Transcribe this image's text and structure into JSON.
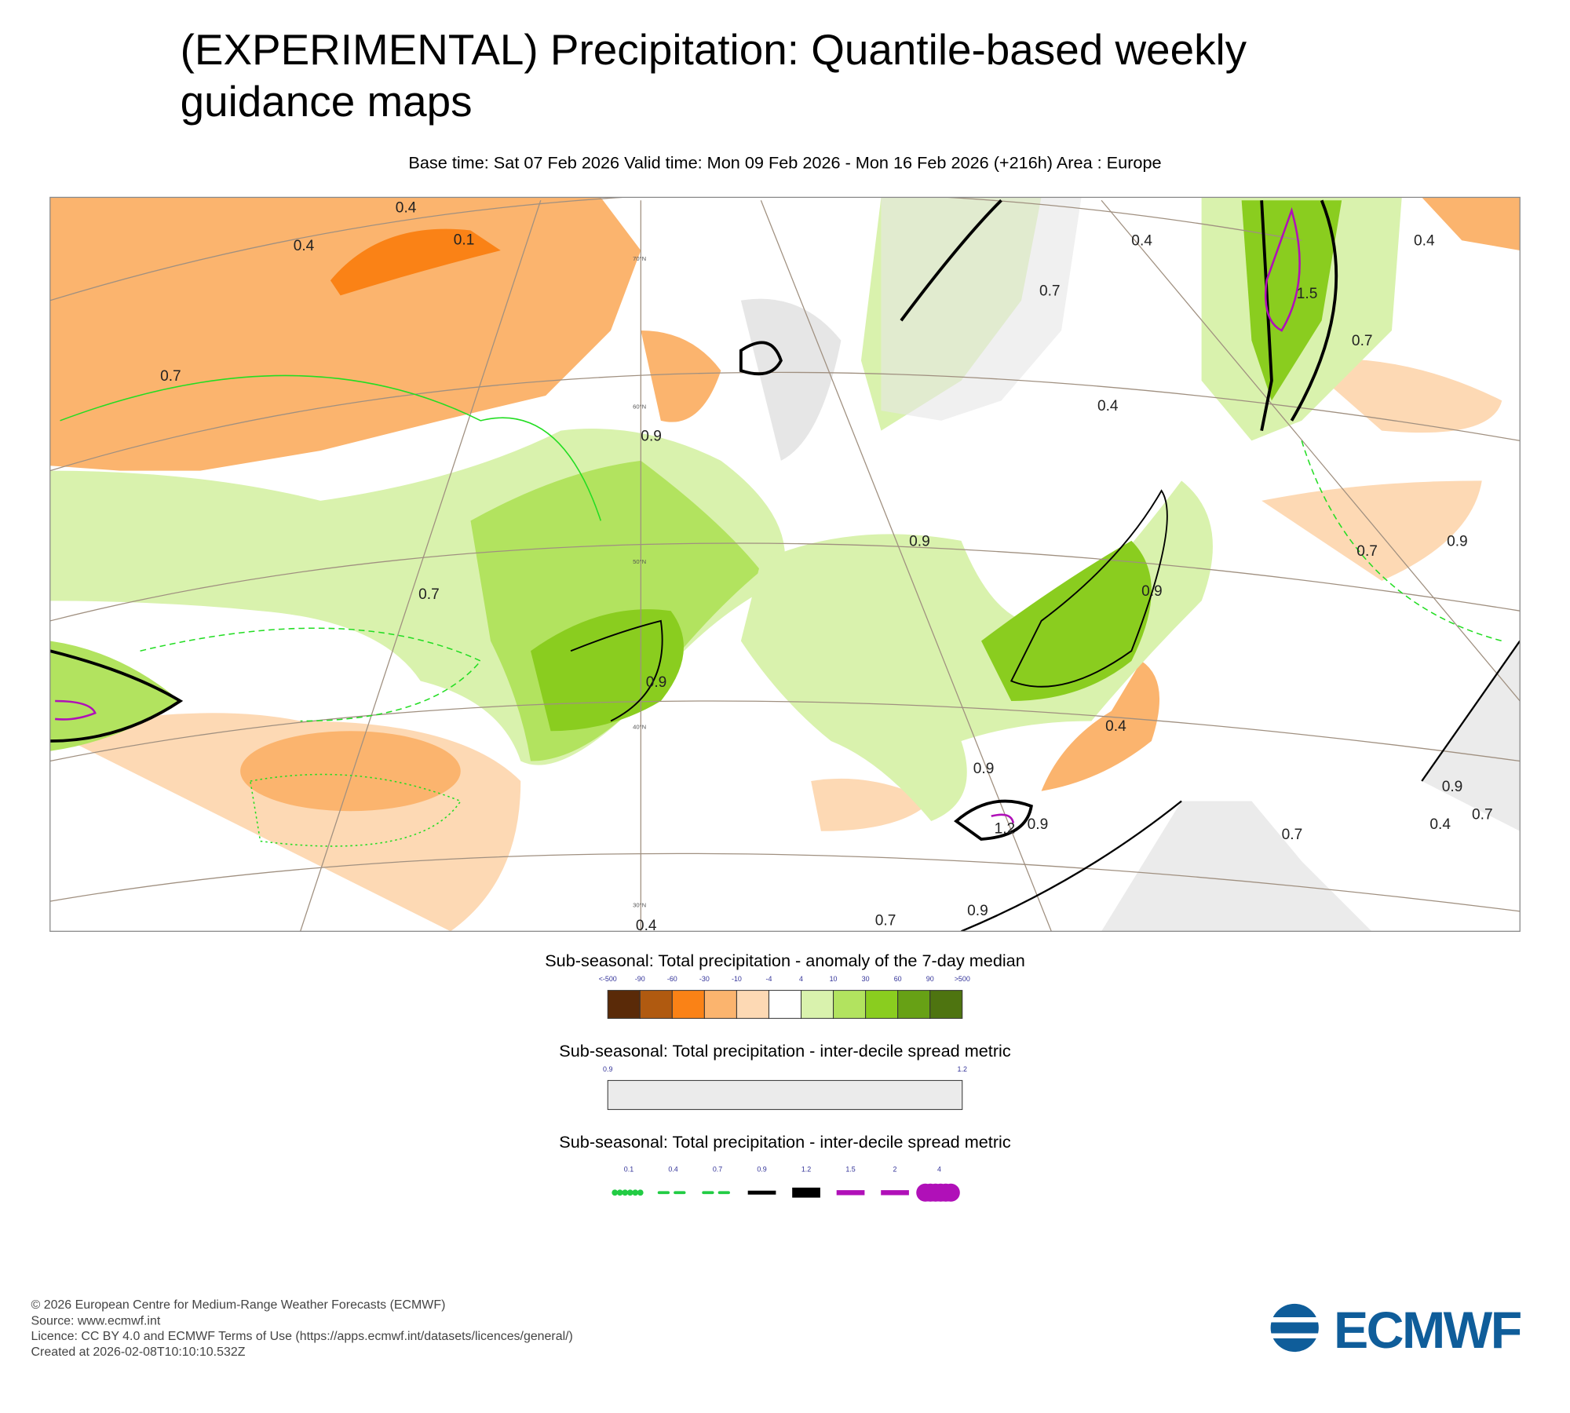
{
  "header": {
    "title": "(EXPERIMENTAL) Precipitation: Quantile-based weekly guidance maps",
    "subtitle": "Base time: Sat 07 Feb 2026 Valid time: Mon 09 Feb 2026 - Mon 16 Feb 2026 (+216h) Area : Europe"
  },
  "map": {
    "latitude_labels": [
      "70°N",
      "60°N",
      "50°N",
      "40°N",
      "30°N"
    ],
    "contour_labels": [
      "0.4",
      "0.4",
      "0.1",
      "0.7",
      "0.7",
      "0.9",
      "0.9",
      "0.9",
      "0.7",
      "0.4",
      "0.4",
      "1.5",
      "0.7",
      "0.4",
      "0.9",
      "0.4",
      "0.9",
      "0.9",
      "1.2",
      "0.9",
      "0.7",
      "0.4",
      "0.7",
      "0.9",
      "0.7",
      "0.4",
      "0.7",
      "0.9"
    ]
  },
  "legends": [
    {
      "title": "Sub-seasonal: Total precipitation - anomaly of the 7-day median",
      "ticks": [
        "<-500",
        "-90",
        "-60",
        "-30",
        "-10",
        "-4",
        "4",
        "10",
        "30",
        "60",
        "90",
        ">500"
      ],
      "colors": [
        "#5a2a08",
        "#b05a10",
        "#fa8216",
        "#fbb46e",
        "#fdd9b4",
        "#ffffff",
        "#d9f2ad",
        "#b2e35f",
        "#8acd1f",
        "#67a115",
        "#4e7410"
      ]
    },
    {
      "title": "Sub-seasonal: Total precipitation - inter-decile spread metric",
      "ticks": [
        "0.9",
        "1.2"
      ],
      "color": "#ebebeb"
    },
    {
      "title": "Sub-seasonal: Total precipitation - inter-decile spread metric",
      "ticks": [
        "0.1",
        "0.4",
        "0.7",
        "0.9",
        "1.2",
        "1.5",
        "2",
        "4"
      ],
      "colors": [
        "#22cc44",
        "#22cc44",
        "#22cc44",
        "#000000",
        "#000000",
        "#b010b8",
        "#b010b8",
        "#b010b8"
      ]
    }
  ],
  "footer": {
    "lines": [
      "© 2026 European Centre for Medium-Range Weather Forecasts (ECMWF)",
      "Source: www.ecmwf.int",
      "Licence: CC BY 4.0 and ECMWF Terms of Use (https://apps.ecmwf.int/datasets/licences/general/)",
      "Created at 2026-02-08T10:10:10.532Z"
    ]
  },
  "logo": {
    "text": "ECMWF"
  }
}
